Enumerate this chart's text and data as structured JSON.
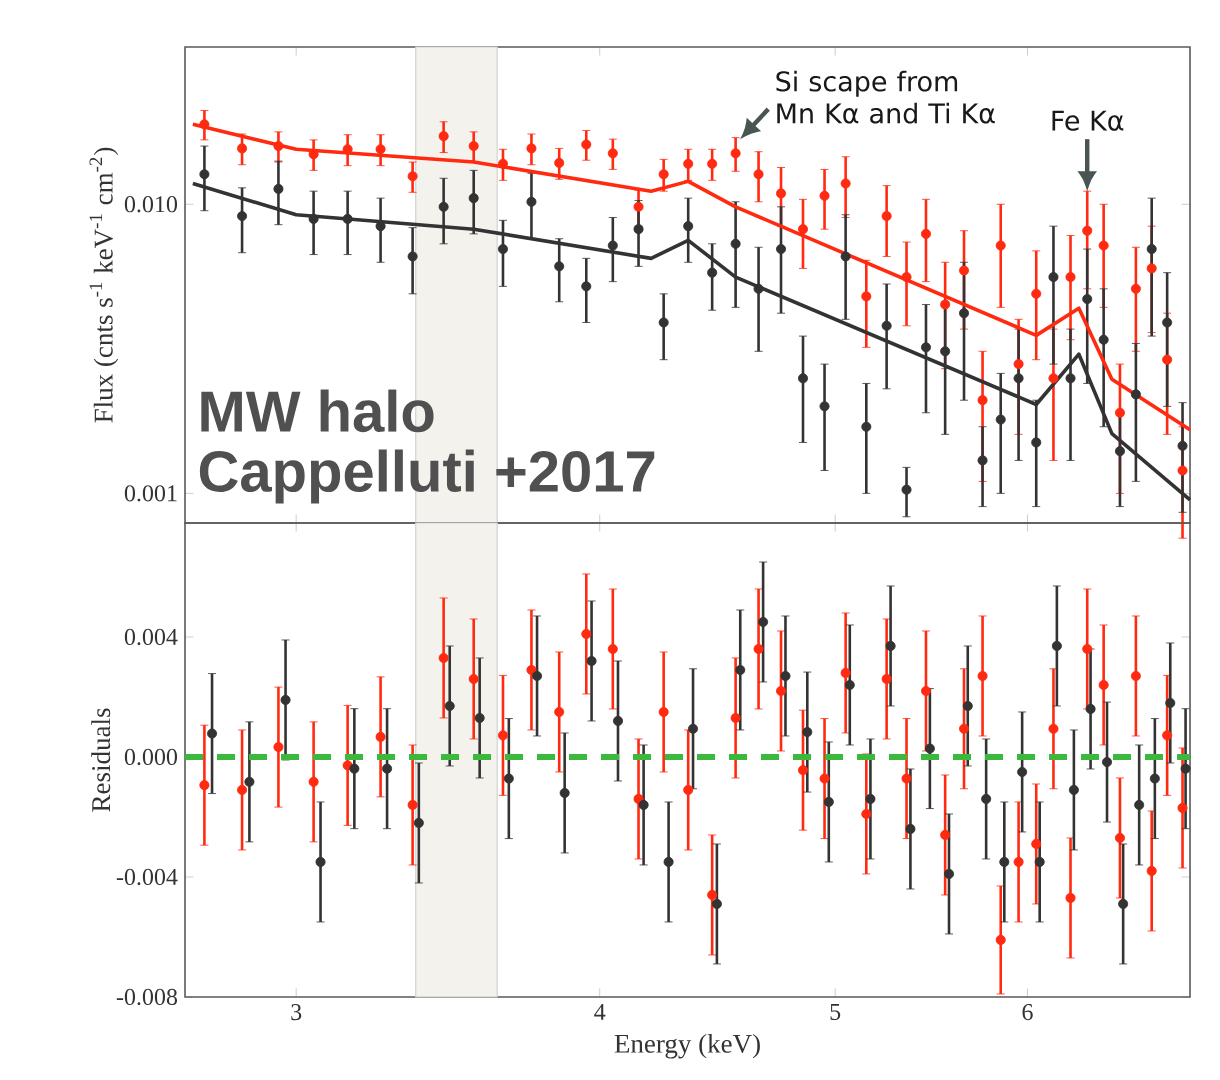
{
  "chart_data": [
    {
      "type": "scatter",
      "ylabel": "Flux (cnts s$^{-1}$ keV$^{-1}$ cm$^{-2}$)",
      "log": "xy",
      "tick_labels": "y",
      "xlim": [
        2.7,
        7.0
      ],
      "xticks": [
        3,
        4,
        5,
        6
      ],
      "ylim": [
        0.00079,
        0.035
      ],
      "yticks": [
        {
          "value": 0.001,
          "label": "0.001"
        },
        {
          "value": 0.01,
          "label": "0.010"
        }
      ],
      "bands": [
        {
          "axis": "x",
          "from": 3.36,
          "to": 3.63,
          "color": "#f4f2ec"
        }
      ],
      "annotations": [
        {
          "text": "Si scape from Mn Kα and Ti Kα",
          "x": 4.57,
          "y": 0.0168
        },
        {
          "text": "Fe Kα",
          "x": 6.35,
          "y": 0.0111
        },
        "MW halo",
        "Cappelluti +2017"
      ],
      "x": [
        2.75,
        2.85,
        2.95,
        3.05,
        3.15,
        3.25,
        3.35,
        3.45,
        3.55,
        3.65,
        3.75,
        3.85,
        3.95,
        4.05,
        4.15,
        4.25,
        4.35,
        4.45,
        4.55,
        4.65,
        4.75,
        4.85,
        4.95,
        5.05,
        5.15,
        5.25,
        5.35,
        5.45,
        5.55,
        5.65,
        5.75,
        5.85,
        5.95,
        6.05,
        6.15,
        6.25,
        6.35,
        6.45,
        6.55,
        6.65,
        6.75,
        6.85,
        6.95
      ],
      "series": [
        {
          "marker": "circle",
          "color": "#ff2a10",
          "values": [
            0.0189,
            0.0156,
            0.0159,
            0.0149,
            0.0155,
            0.0155,
            0.0125,
            0.0172,
            0.0159,
            0.0138,
            0.0156,
            0.0139,
            0.0161,
            0.015,
            0.0098,
            0.0127,
            0.0138,
            0.0138,
            0.015,
            0.0127,
            0.0109,
            0.0082,
            0.0107,
            0.0118,
            0.0048,
            0.0091,
            0.0056,
            0.0079,
            0.0045,
            0.0059,
            0.0021,
            0.0072,
            0.0028,
            0.0049,
            0.0025,
            0.0056,
            0.0081,
            0.0072,
            0.0019,
            0.0051,
            0.006,
            0.0029,
            0.0012
          ],
          "errors": [
            0.0022,
            0.0019,
            0.0019,
            0.0018,
            0.0019,
            0.0019,
            0.0015,
            0.0021,
            0.0019,
            0.0017,
            0.0019,
            0.0017,
            0.0019,
            0.0018,
            0.0014,
            0.0016,
            0.0017,
            0.0017,
            0.002,
            0.0025,
            0.0025,
            0.0022,
            0.0025,
            0.0028,
            0.0016,
            0.0025,
            0.0018,
            0.0025,
            0.0018,
            0.0022,
            0.001,
            0.0028,
            0.0012,
            0.002,
            0.0012,
            0.0022,
            0.003,
            0.0028,
            0.0009,
            0.002,
            0.0024,
            0.0013,
            0.0005
          ]
        },
        {
          "marker": "circle",
          "color": "#333333",
          "values": [
            0.0127,
            0.0091,
            0.0113,
            0.0089,
            0.0089,
            0.0084,
            0.0066,
            0.0098,
            0.0105,
            0.007,
            0.0102,
            0.0061,
            0.0052,
            0.0072,
            0.0082,
            0.0039,
            0.0084,
            0.0058,
            0.0073,
            0.0051,
            0.007,
            0.0025,
            0.002,
            0.0066,
            0.0017,
            0.0038,
            0.00103,
            0.0032,
            0.0031,
            0.0042,
            0.0013,
            0.0018,
            0.0025,
            0.0015,
            0.0056,
            0.0025,
            0.0047,
            0.0034,
            0.0014,
            0.0022,
            0.007,
            0.0039,
            0.00146
          ],
          "errors": [
            0.0032,
            0.0023,
            0.0028,
            0.0022,
            0.0022,
            0.0021,
            0.0017,
            0.0025,
            0.0026,
            0.0018,
            0.0026,
            0.0015,
            0.0013,
            0.0018,
            0.0021,
            0.001,
            0.0021,
            0.0015,
            0.0029,
            0.002,
            0.0028,
            0.001,
            0.0008,
            0.0026,
            0.0007,
            0.0015,
            0.0002,
            0.0013,
            0.0015,
            0.0021,
            0.0004,
            0.0008,
            0.0012,
            0.0006,
            0.0028,
            0.0012,
            0.0023,
            0.0017,
            0.0005,
            0.0011,
            0.0035,
            0.0019,
            0.0006
          ]
        },
        {
          "type": "line",
          "marker": "none",
          "color": "#ff2a10",
          "x": [
            2.72,
            3.0,
            3.55,
            4.2,
            4.35,
            4.55,
            6.05,
            6.3,
            6.5,
            7.0
          ],
          "values": [
            0.0189,
            0.0155,
            0.014,
            0.0111,
            0.012,
            0.0098,
            0.00352,
            0.00437,
            0.00248,
            0.00166
          ]
        },
        {
          "type": "line",
          "marker": "none",
          "color": "#333333",
          "x": [
            2.72,
            3.0,
            3.55,
            4.2,
            4.35,
            4.55,
            6.05,
            6.3,
            6.5,
            7.0
          ],
          "values": [
            0.0118,
            0.0092,
            0.0082,
            0.0065,
            0.0075,
            0.0056,
            0.00203,
            0.00303,
            0.00161,
            0.00095
          ]
        }
      ]
    },
    {
      "type": "scatter",
      "xlabel": "Energy (keV)",
      "ylabel": "Residuals",
      "log": "x",
      "xlim": [
        2.7,
        7.0
      ],
      "xticks": [
        3,
        4,
        5,
        6
      ],
      "ylim": [
        -0.008,
        0.0078
      ],
      "yticks": [
        {
          "value": -0.008,
          "label": "-0.008"
        },
        {
          "value": -0.004,
          "label": "-0.004"
        },
        {
          "value": 0,
          "label": "0.000"
        },
        {
          "value": 0.004,
          "label": "0.004"
        }
      ],
      "bands": [
        {
          "axis": "x",
          "from": 3.36,
          "to": 3.63,
          "color": "#f4f2ec"
        }
      ],
      "ref_lines": [
        {
          "axis": "y",
          "value": 0,
          "color": "#3cb83c",
          "line_style": "dashed"
        }
      ],
      "x": [
        2.75,
        2.85,
        2.95,
        3.05,
        3.15,
        3.25,
        3.35,
        3.45,
        3.55,
        3.65,
        3.75,
        3.85,
        3.95,
        4.05,
        4.15,
        4.25,
        4.35,
        4.45,
        4.55,
        4.65,
        4.75,
        4.85,
        4.95,
        5.05,
        5.15,
        5.25,
        5.35,
        5.45,
        5.55,
        5.65,
        5.75,
        5.85,
        5.95,
        6.05,
        6.15,
        6.25,
        6.35,
        6.45,
        6.55,
        6.65,
        6.75,
        6.85,
        6.95
      ],
      "series": [
        {
          "marker": "circle",
          "color": "#ff2a10",
          "values": [
            -0.00094,
            -0.0011,
            0.00033,
            -0.00083,
            -0.00028,
            0.00067,
            -0.0016,
            0.0033,
            0.0026,
            0.00072,
            0.0029,
            0.0015,
            0.0041,
            0.0036,
            -0.0014,
            0.0015,
            -0.0011,
            -0.0046,
            0.0013,
            0.0036,
            0.0022,
            -0.00044,
            -0.00072,
            0.0028,
            -0.0019,
            0.0026,
            -0.00072,
            0.0022,
            -0.0026,
            0.00094,
            0.0027,
            -0.0061,
            -0.0035,
            -0.0029,
            0.00094,
            -0.0047,
            0.0036,
            0.0024,
            -0.0027,
            0.0027,
            -0.0038,
            0.00072,
            -0.0017
          ],
          "errors": [
            0.002,
            0.002,
            0.002,
            0.002,
            0.002,
            0.002,
            0.002,
            0.002,
            0.002,
            0.002,
            0.002,
            0.002,
            0.002,
            0.002,
            0.002,
            0.002,
            0.002,
            0.002,
            0.002,
            0.002,
            0.002,
            0.002,
            0.002,
            0.002,
            0.002,
            0.002,
            0.002,
            0.002,
            0.002,
            0.002,
            0.002,
            0.0018,
            0.002,
            0.002,
            0.002,
            0.002,
            0.002,
            0.002,
            0.002,
            0.002,
            0.002,
            0.002,
            0.002
          ]
        },
        {
          "marker": "circle",
          "color": "#333333",
          "x": [
            2.77,
            2.87,
            2.97,
            3.07,
            3.17,
            3.27,
            3.37,
            3.47,
            3.57,
            3.67,
            3.77,
            3.87,
            3.97,
            4.07,
            4.17,
            4.27,
            4.37,
            4.47,
            4.57,
            4.67,
            4.77,
            4.87,
            4.97,
            5.07,
            5.17,
            5.27,
            5.37,
            5.47,
            5.57,
            5.67,
            5.77,
            5.87,
            5.97,
            6.07,
            6.17,
            6.27,
            6.37,
            6.47,
            6.57,
            6.67,
            6.77,
            6.87,
            6.97
          ],
          "values": [
            0.00078,
            -0.00083,
            0.0019,
            -0.0035,
            -0.00039,
            -0.00039,
            -0.0022,
            0.0017,
            0.0013,
            -0.00072,
            0.0027,
            -0.0012,
            0.0032,
            0.0012,
            -0.0016,
            -0.0035,
            0.00094,
            -0.0049,
            0.0029,
            0.0045,
            0.0027,
            0.00083,
            -0.0015,
            0.0024,
            -0.0014,
            0.0037,
            -0.0024,
            0.00028,
            -0.0039,
            0.0017,
            -0.0014,
            -0.0035,
            -0.0005,
            -0.0035,
            0.0037,
            -0.0011,
            0.0016,
            -0.00017,
            -0.0049,
            -0.0016,
            -0.00072,
            0.0018,
            -0.00039
          ],
          "errors": [
            0.002,
            0.002,
            0.002,
            0.002,
            0.002,
            0.002,
            0.002,
            0.002,
            0.002,
            0.002,
            0.002,
            0.002,
            0.002,
            0.002,
            0.002,
            0.002,
            0.002,
            0.002,
            0.002,
            0.002,
            0.002,
            0.002,
            0.002,
            0.002,
            0.002,
            0.002,
            0.002,
            0.002,
            0.002,
            0.002,
            0.002,
            0.002,
            0.002,
            0.002,
            0.002,
            0.002,
            0.002,
            0.002,
            0.002,
            0.002,
            0.002,
            0.002,
            0.002
          ]
        }
      ]
    }
  ]
}
